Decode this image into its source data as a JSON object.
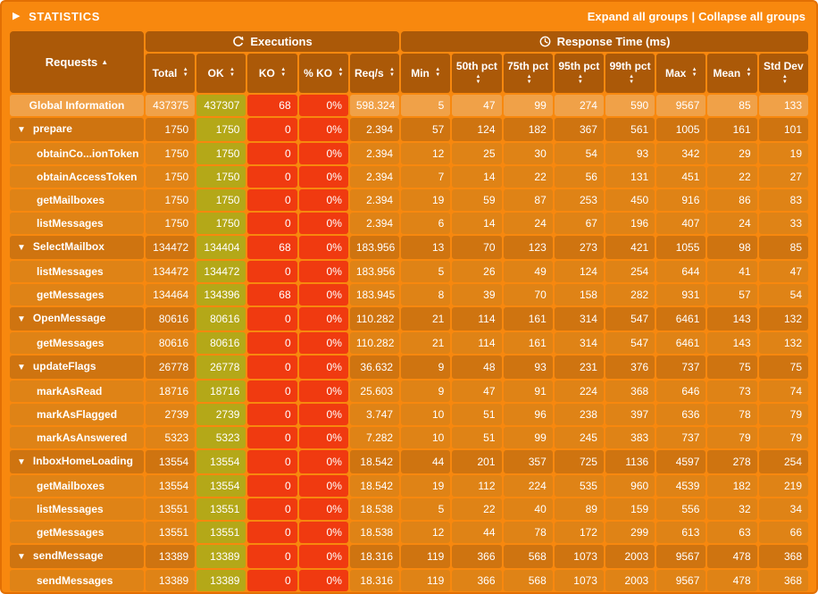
{
  "colors": {
    "page_bg": "#f8880e",
    "frame": "#e26f04",
    "header_cell": "#ab5908",
    "global_row": "#f0a148",
    "group_row": "#cf7410",
    "request_row": "#df8316",
    "ok_cell": "#b4a818",
    "ko_cell": "#f03a10",
    "text": "#ffffff"
  },
  "icons": {
    "statistics-toggle-icon": "▶",
    "sort-icon": "▲▼",
    "sort-ascending-icon": "▲",
    "group-expanded-icon": "▼",
    "refresh-icon": "circular-arrow-svg",
    "clock-icon": "clock-svg"
  },
  "title_bar": {
    "title": "STATISTICS",
    "expand_all": "Expand all groups",
    "separator": "|",
    "collapse_all": "Collapse all groups"
  },
  "table": {
    "requests_header": "Requests",
    "executions_header": "Executions",
    "response_time_header": "Response Time (ms)",
    "columns": [
      {
        "key": "total",
        "label": "Total"
      },
      {
        "key": "ok",
        "label": "OK"
      },
      {
        "key": "ko",
        "label": "KO"
      },
      {
        "key": "ko_pct",
        "label": "% KO"
      },
      {
        "key": "reqs",
        "label": "Req/s"
      },
      {
        "key": "min",
        "label": "Min"
      },
      {
        "key": "p50",
        "label": "50th pct"
      },
      {
        "key": "p75",
        "label": "75th pct"
      },
      {
        "key": "p95",
        "label": "95th pct"
      },
      {
        "key": "p99",
        "label": "99th pct"
      },
      {
        "key": "max",
        "label": "Max"
      },
      {
        "key": "mean",
        "label": "Mean"
      },
      {
        "key": "stddev",
        "label": "Std Dev"
      }
    ],
    "rows": [
      {
        "type": "global",
        "name": "Global Information",
        "values": [
          "437375",
          "437307",
          "68",
          "0%",
          "598.324",
          "5",
          "47",
          "99",
          "274",
          "590",
          "9567",
          "85",
          "133"
        ]
      },
      {
        "type": "group",
        "name": "prepare",
        "values": [
          "1750",
          "1750",
          "0",
          "0%",
          "2.394",
          "57",
          "124",
          "182",
          "367",
          "561",
          "1005",
          "161",
          "101"
        ]
      },
      {
        "type": "request",
        "name": "obtainCo...ionToken",
        "values": [
          "1750",
          "1750",
          "0",
          "0%",
          "2.394",
          "12",
          "25",
          "30",
          "54",
          "93",
          "342",
          "29",
          "19"
        ]
      },
      {
        "type": "request",
        "name": "obtainAccessToken",
        "values": [
          "1750",
          "1750",
          "0",
          "0%",
          "2.394",
          "7",
          "14",
          "22",
          "56",
          "131",
          "451",
          "22",
          "27"
        ]
      },
      {
        "type": "request",
        "name": "getMailboxes",
        "values": [
          "1750",
          "1750",
          "0",
          "0%",
          "2.394",
          "19",
          "59",
          "87",
          "253",
          "450",
          "916",
          "86",
          "83"
        ]
      },
      {
        "type": "request",
        "name": "listMessages",
        "values": [
          "1750",
          "1750",
          "0",
          "0%",
          "2.394",
          "6",
          "14",
          "24",
          "67",
          "196",
          "407",
          "24",
          "33"
        ]
      },
      {
        "type": "group",
        "name": "SelectMailbox",
        "values": [
          "134472",
          "134404",
          "68",
          "0%",
          "183.956",
          "13",
          "70",
          "123",
          "273",
          "421",
          "1055",
          "98",
          "85"
        ]
      },
      {
        "type": "request",
        "name": "listMessages",
        "values": [
          "134472",
          "134472",
          "0",
          "0%",
          "183.956",
          "5",
          "26",
          "49",
          "124",
          "254",
          "644",
          "41",
          "47"
        ]
      },
      {
        "type": "request",
        "name": "getMessages",
        "values": [
          "134464",
          "134396",
          "68",
          "0%",
          "183.945",
          "8",
          "39",
          "70",
          "158",
          "282",
          "931",
          "57",
          "54"
        ]
      },
      {
        "type": "group",
        "name": "OpenMessage",
        "values": [
          "80616",
          "80616",
          "0",
          "0%",
          "110.282",
          "21",
          "114",
          "161",
          "314",
          "547",
          "6461",
          "143",
          "132"
        ]
      },
      {
        "type": "request",
        "name": "getMessages",
        "values": [
          "80616",
          "80616",
          "0",
          "0%",
          "110.282",
          "21",
          "114",
          "161",
          "314",
          "547",
          "6461",
          "143",
          "132"
        ]
      },
      {
        "type": "group",
        "name": "updateFlags",
        "values": [
          "26778",
          "26778",
          "0",
          "0%",
          "36.632",
          "9",
          "48",
          "93",
          "231",
          "376",
          "737",
          "75",
          "75"
        ]
      },
      {
        "type": "request",
        "name": "markAsRead",
        "values": [
          "18716",
          "18716",
          "0",
          "0%",
          "25.603",
          "9",
          "47",
          "91",
          "224",
          "368",
          "646",
          "73",
          "74"
        ]
      },
      {
        "type": "request",
        "name": "markAsFlagged",
        "values": [
          "2739",
          "2739",
          "0",
          "0%",
          "3.747",
          "10",
          "51",
          "96",
          "238",
          "397",
          "636",
          "78",
          "79"
        ]
      },
      {
        "type": "request",
        "name": "markAsAnswered",
        "values": [
          "5323",
          "5323",
          "0",
          "0%",
          "7.282",
          "10",
          "51",
          "99",
          "245",
          "383",
          "737",
          "79",
          "79"
        ]
      },
      {
        "type": "group",
        "name": "InboxHomeLoading",
        "values": [
          "13554",
          "13554",
          "0",
          "0%",
          "18.542",
          "44",
          "201",
          "357",
          "725",
          "1136",
          "4597",
          "278",
          "254"
        ]
      },
      {
        "type": "request",
        "name": "getMailboxes",
        "values": [
          "13554",
          "13554",
          "0",
          "0%",
          "18.542",
          "19",
          "112",
          "224",
          "535",
          "960",
          "4539",
          "182",
          "219"
        ]
      },
      {
        "type": "request",
        "name": "listMessages",
        "values": [
          "13551",
          "13551",
          "0",
          "0%",
          "18.538",
          "5",
          "22",
          "40",
          "89",
          "159",
          "556",
          "32",
          "34"
        ]
      },
      {
        "type": "request",
        "name": "getMessages",
        "values": [
          "13551",
          "13551",
          "0",
          "0%",
          "18.538",
          "12",
          "44",
          "78",
          "172",
          "299",
          "613",
          "63",
          "66"
        ]
      },
      {
        "type": "group",
        "name": "sendMessage",
        "values": [
          "13389",
          "13389",
          "0",
          "0%",
          "18.316",
          "119",
          "366",
          "568",
          "1073",
          "2003",
          "9567",
          "478",
          "368"
        ]
      },
      {
        "type": "request",
        "name": "sendMessages",
        "values": [
          "13389",
          "13389",
          "0",
          "0%",
          "18.316",
          "119",
          "366",
          "568",
          "1073",
          "2003",
          "9567",
          "478",
          "368"
        ]
      }
    ]
  }
}
